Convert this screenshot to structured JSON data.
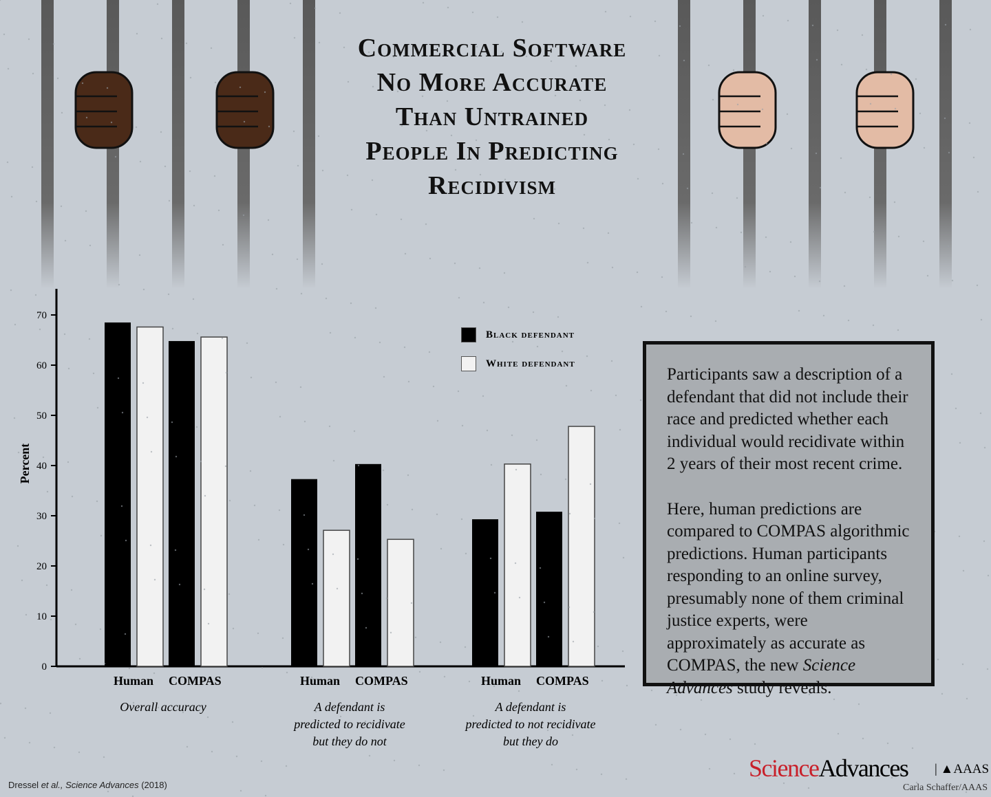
{
  "title_lines": [
    "Commercial Software",
    "No More Accurate",
    "Than Untrained",
    "People In Predicting",
    "Recidivism"
  ],
  "chart_data": {
    "type": "bar",
    "ylabel": "Percent",
    "ylim": [
      0,
      75
    ],
    "yticks": [
      0,
      10,
      20,
      30,
      40,
      50,
      60,
      70
    ],
    "groups": [
      {
        "label": "Overall accuracy",
        "categories": [
          "Human",
          "COMPAS"
        ]
      },
      {
        "label": "A defendant is predicted to recidivate but they do not",
        "categories": [
          "Human",
          "COMPAS"
        ]
      },
      {
        "label": "A defendant is predicted to not recidivate but they do",
        "categories": [
          "Human",
          "COMPAS"
        ]
      }
    ],
    "series": [
      {
        "name": "Black defendant",
        "color": "#000000",
        "values": [
          [
            68.5,
            64.8
          ],
          [
            37.3,
            40.3
          ],
          [
            29.3,
            30.8
          ]
        ]
      },
      {
        "name": "White defendant",
        "color": "#f2f2f2",
        "values": [
          [
            67.6,
            65.6
          ],
          [
            27.1,
            25.3
          ],
          [
            40.3,
            47.8
          ]
        ]
      }
    ],
    "legend_position": "top-right",
    "grid": false
  },
  "group_label_lines": [
    [
      "Overall accuracy"
    ],
    [
      "A defendant is",
      "predicted to recidivate",
      "but they do not"
    ],
    [
      "A defendant is",
      "predicted to not recidivate",
      "but they do"
    ]
  ],
  "textbox": {
    "p1": "Participants saw a description of a defendant that did not include their race and predicted whether each individual would recidivate within 2 years of their most recent crime.",
    "p2_a": "Here, human predictions are compared to COMPAS algorithmic predictions. Human participants responding to an online survey, presumably none of  them criminal justice experts, were approximately as accurate as COMPAS, the new ",
    "p2_em": "Science Advances",
    "p2_b": " study reveals."
  },
  "source": {
    "a": "Dressel ",
    "em": "et al., Science Advances",
    "b": " (2018)"
  },
  "logo": {
    "science": "Science",
    "advances": "Advances",
    "aaas": "AAAS"
  },
  "credit": "Carla Schaffer/AAAS",
  "colors": {
    "background": "#c6ccd3",
    "bars_bars": "#5a5a5a",
    "dark_skin": "#4a2a18",
    "light_skin": "#e3bba5",
    "logo_red": "#c8202a"
  }
}
